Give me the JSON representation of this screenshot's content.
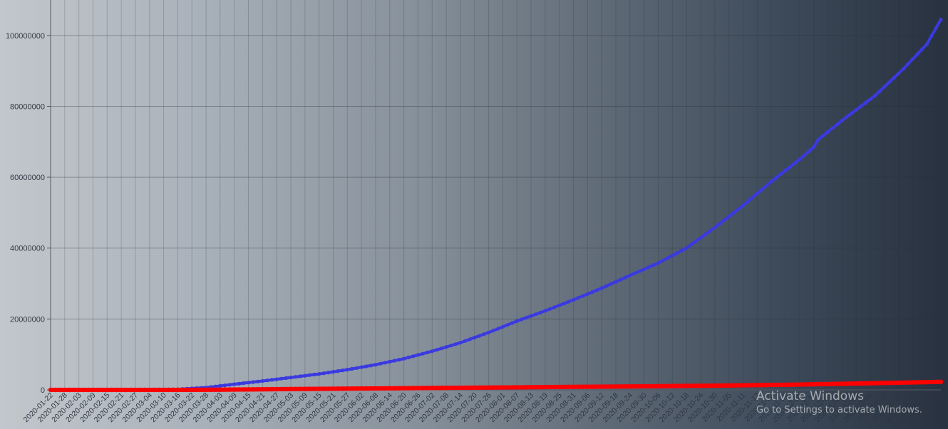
{
  "chart_data": {
    "type": "line",
    "xlabel": "",
    "ylabel": "",
    "title": "",
    "ylim": [
      0,
      110000000
    ],
    "y_ticks": [
      0,
      20000000,
      40000000,
      60000000,
      80000000,
      100000000
    ],
    "x_start": "2020-01-22",
    "x_end": "2021-02-03",
    "x_tick_step_days": 6,
    "grid": true,
    "series": [
      {
        "color": "#3a3ae0",
        "points": [
          [
            "2020-01-22",
            0
          ],
          [
            "2020-02-15",
            71000
          ],
          [
            "2020-03-01",
            88000
          ],
          [
            "2020-03-16",
            180000
          ],
          [
            "2020-03-28",
            650000
          ],
          [
            "2020-04-09",
            1600000
          ],
          [
            "2020-04-21",
            2500000
          ],
          [
            "2020-05-03",
            3500000
          ],
          [
            "2020-05-15",
            4500000
          ],
          [
            "2020-05-27",
            5700000
          ],
          [
            "2020-06-08",
            7100000
          ],
          [
            "2020-06-20",
            8800000
          ],
          [
            "2020-07-02",
            10900000
          ],
          [
            "2020-07-14",
            13300000
          ],
          [
            "2020-07-26",
            16200000
          ],
          [
            "2020-08-07",
            19400000
          ],
          [
            "2020-08-19",
            22300000
          ],
          [
            "2020-08-31",
            25400000
          ],
          [
            "2020-09-12",
            28700000
          ],
          [
            "2020-09-24",
            32300000
          ],
          [
            "2020-10-06",
            35800000
          ],
          [
            "2020-10-18",
            40000000
          ],
          [
            "2020-10-30",
            45800000
          ],
          [
            "2020-11-11",
            52000000
          ],
          [
            "2020-11-23",
            58800000
          ],
          [
            "2020-12-05",
            65000000
          ],
          [
            "2020-12-11",
            68500000
          ],
          [
            "2020-12-13",
            70700000
          ],
          [
            "2020-12-25",
            77000000
          ],
          [
            "2021-01-06",
            83000000
          ],
          [
            "2021-01-18",
            90500000
          ],
          [
            "2021-01-28",
            97500000
          ],
          [
            "2021-02-03",
            104500000
          ]
        ]
      },
      {
        "color": "#ff0000",
        "points": [
          [
            "2020-01-22",
            0
          ],
          [
            "2020-03-16",
            8000
          ],
          [
            "2020-04-03",
            70000
          ],
          [
            "2020-05-01",
            230000
          ],
          [
            "2020-06-01",
            380000
          ],
          [
            "2020-07-01",
            520000
          ],
          [
            "2020-08-01",
            690000
          ],
          [
            "2020-09-01",
            850000
          ],
          [
            "2020-10-01",
            1010000
          ],
          [
            "2020-11-01",
            1200000
          ],
          [
            "2020-12-01",
            1460000
          ],
          [
            "2021-01-01",
            1820000
          ],
          [
            "2021-02-03",
            2270000
          ]
        ]
      }
    ]
  },
  "watermark": {
    "title": "Activate Windows",
    "subtitle": "Go to Settings to activate Windows."
  }
}
